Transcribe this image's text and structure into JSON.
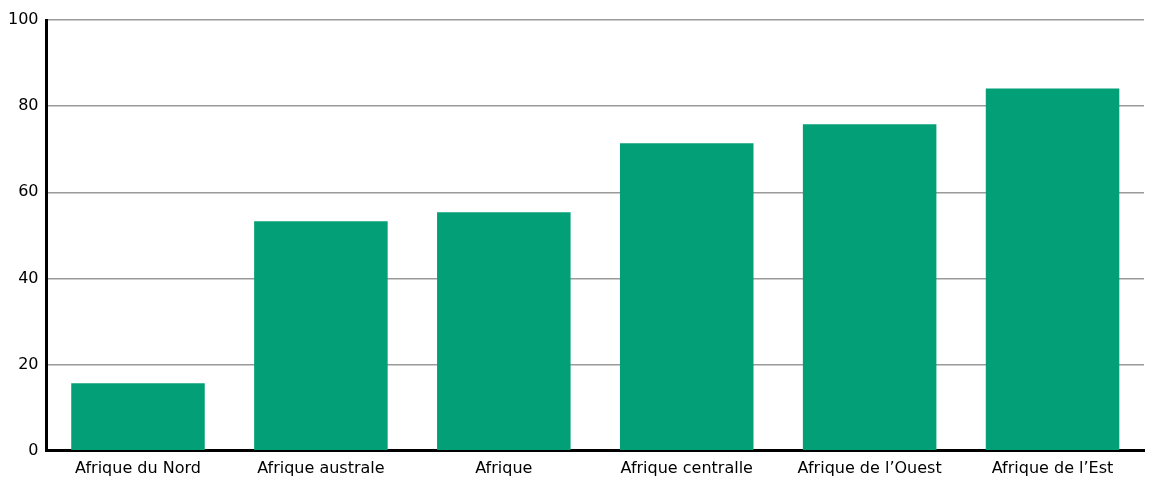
{
  "chart_data": {
    "type": "bar",
    "categories": [
      "Afrique du Nord",
      "Afrique australe",
      "Afrique",
      "Afrique centralle",
      "Afrique de l’Ouest",
      "Afrique de l’Est"
    ],
    "values": [
      15.7,
      53.3,
      55.4,
      71.4,
      75.8,
      84.1
    ],
    "color": "#03a077",
    "ylim": [
      0,
      100
    ],
    "yticks": [
      0,
      20,
      40,
      60,
      80,
      100
    ],
    "grid": "y",
    "legend": false
  }
}
